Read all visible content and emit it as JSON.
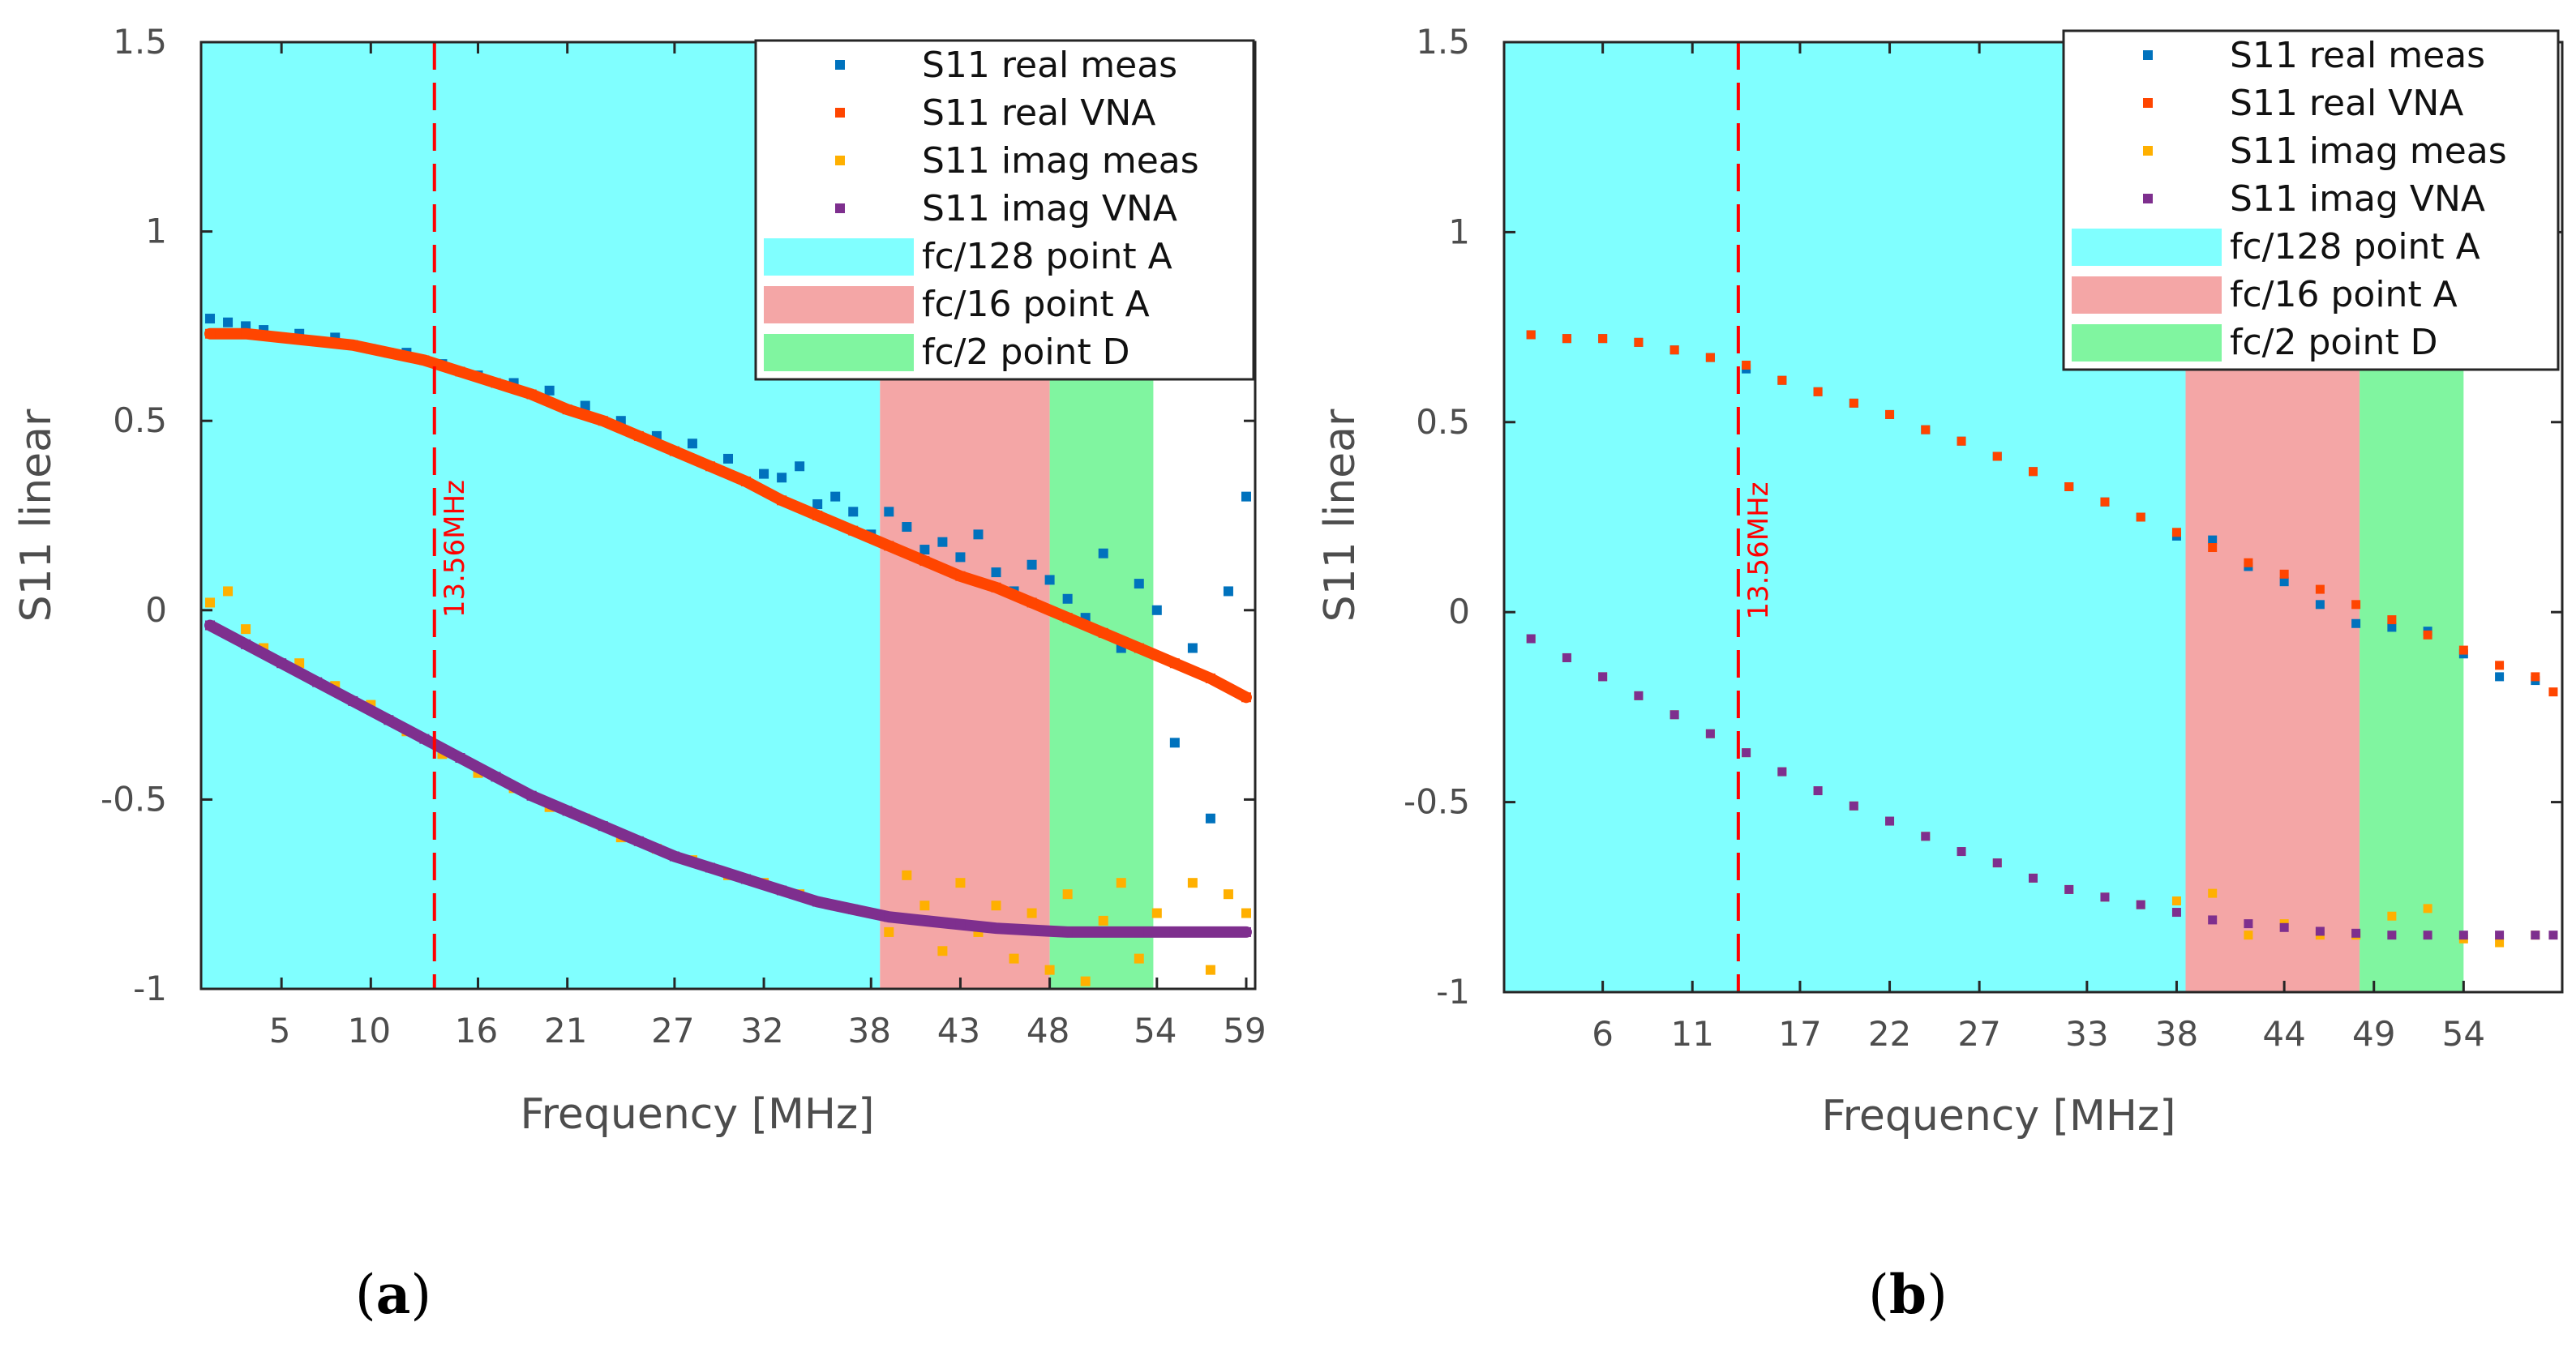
{
  "chart_data": [
    {
      "panel": "a",
      "type": "scatter",
      "caption": "a",
      "xlabel": "Frequency [MHz]",
      "ylabel": "S11 linear",
      "xlim": [
        0.5,
        59.5
      ],
      "ylim": [
        -1,
        1.5
      ],
      "xticks": [
        5,
        10,
        16,
        21,
        27,
        32,
        38,
        43,
        48,
        54,
        59
      ],
      "yticks": [
        -1,
        -0.5,
        0,
        0.5,
        1,
        1.5
      ],
      "ytick_labels": [
        "-1",
        "-0.5",
        "0",
        "0.5",
        "1",
        "1.5"
      ],
      "marker_line": {
        "x": 13.56,
        "label": "13.56MHz",
        "color": "#ff0000"
      },
      "bands": [
        {
          "label": "fc/128 point A",
          "x_start": 0.5,
          "x_end": 38.5,
          "color": "#80ffff"
        },
        {
          "label": "fc/16 point A",
          "x_start": 38.5,
          "x_end": 48.0,
          "color": "#f4a6a6"
        },
        {
          "label": "fc/2 point D",
          "x_start": 48.0,
          "x_end": 53.8,
          "color": "#80f5a0"
        }
      ],
      "series": [
        {
          "name": "S11 real meas",
          "color": "#0072bd",
          "x": [
            1,
            2,
            3,
            4,
            5,
            6,
            7,
            8,
            9,
            10,
            12,
            14,
            16,
            18,
            20,
            22,
            24,
            26,
            28,
            30,
            32,
            33,
            34,
            35,
            36,
            37,
            38,
            39,
            40,
            41,
            42,
            43,
            44,
            45,
            46,
            47,
            48,
            49,
            50,
            51,
            52,
            53,
            54,
            55,
            56,
            57,
            58,
            59
          ],
          "y": [
            0.77,
            0.76,
            0.75,
            0.74,
            0.72,
            0.73,
            0.71,
            0.72,
            0.7,
            0.69,
            0.68,
            0.65,
            0.62,
            0.6,
            0.58,
            0.54,
            0.5,
            0.46,
            0.44,
            0.4,
            0.36,
            0.35,
            0.38,
            0.28,
            0.3,
            0.26,
            0.2,
            0.26,
            0.22,
            0.16,
            0.18,
            0.14,
            0.2,
            0.1,
            0.05,
            0.12,
            0.08,
            0.03,
            -0.02,
            0.15,
            -0.1,
            0.07,
            0.0,
            -0.35,
            -0.1,
            -0.55,
            0.05,
            0.3
          ]
        },
        {
          "name": "S11 real VNA",
          "color": "#ff4500",
          "x": [
            1,
            3,
            5,
            7,
            9,
            11,
            13,
            15,
            17,
            19,
            21,
            23,
            25,
            27,
            29,
            31,
            33,
            35,
            37,
            39,
            41,
            43,
            45,
            47,
            49,
            51,
            53,
            55,
            57,
            59
          ],
          "y": [
            0.73,
            0.73,
            0.72,
            0.71,
            0.7,
            0.68,
            0.66,
            0.63,
            0.6,
            0.57,
            0.53,
            0.5,
            0.46,
            0.42,
            0.38,
            0.34,
            0.29,
            0.25,
            0.21,
            0.17,
            0.13,
            0.09,
            0.06,
            0.02,
            -0.02,
            -0.06,
            -0.1,
            -0.14,
            -0.18,
            -0.23
          ]
        },
        {
          "name": "S11 imag meas",
          "color": "#ffb000",
          "x": [
            1,
            2,
            3,
            4,
            6,
            8,
            10,
            12,
            14,
            16,
            18,
            20,
            22,
            24,
            26,
            28,
            30,
            32,
            34,
            36,
            38,
            39,
            40,
            41,
            42,
            43,
            44,
            45,
            46,
            47,
            48,
            49,
            50,
            51,
            52,
            53,
            54,
            55,
            56,
            57,
            58,
            59
          ],
          "y": [
            0.02,
            0.05,
            -0.05,
            -0.1,
            -0.14,
            -0.2,
            -0.25,
            -0.32,
            -0.38,
            -0.43,
            -0.47,
            -0.52,
            -0.55,
            -0.6,
            -0.63,
            -0.66,
            -0.7,
            -0.72,
            -0.75,
            -0.78,
            -0.8,
            -0.85,
            -0.7,
            -0.78,
            -0.9,
            -0.72,
            -0.85,
            -0.78,
            -0.92,
            -0.8,
            -0.95,
            -0.75,
            -0.98,
            -0.82,
            -0.72,
            -0.92,
            -0.8,
            -0.85,
            -0.72,
            -0.95,
            -0.75,
            -0.8
          ]
        },
        {
          "name": "S11 imag VNA",
          "color": "#7e2f8e",
          "x": [
            1,
            3,
            5,
            7,
            9,
            11,
            13,
            15,
            17,
            19,
            21,
            23,
            25,
            27,
            29,
            31,
            33,
            35,
            37,
            39,
            41,
            43,
            45,
            47,
            49,
            51,
            53,
            55,
            57,
            59
          ],
          "y": [
            -0.04,
            -0.09,
            -0.14,
            -0.19,
            -0.24,
            -0.29,
            -0.34,
            -0.39,
            -0.44,
            -0.49,
            -0.53,
            -0.57,
            -0.61,
            -0.65,
            -0.68,
            -0.71,
            -0.74,
            -0.77,
            -0.79,
            -0.81,
            -0.82,
            -0.83,
            -0.84,
            -0.845,
            -0.85,
            -0.85,
            -0.85,
            -0.85,
            -0.85,
            -0.85
          ]
        }
      ]
    },
    {
      "panel": "b",
      "type": "scatter",
      "caption": "b",
      "xlabel": "Frequency [MHz]",
      "ylabel": "S11 linear",
      "xlim": [
        0.5,
        59.5
      ],
      "ylim": [
        -1,
        1.5
      ],
      "xticks": [
        6,
        11,
        17,
        22,
        27,
        33,
        38,
        44,
        49,
        54
      ],
      "yticks": [
        -1,
        -0.5,
        0,
        0.5,
        1,
        1.5
      ],
      "ytick_labels": [
        "-1",
        "-0.5",
        "0",
        "0.5",
        "1",
        "1.5"
      ],
      "marker_line": {
        "x": 13.56,
        "label": "13.56MHz",
        "color": "#ff0000"
      },
      "bands": [
        {
          "label": "fc/128 point A",
          "x_start": 0.5,
          "x_end": 38.5,
          "color": "#80ffff"
        },
        {
          "label": "fc/16 point A",
          "x_start": 38.5,
          "x_end": 48.2,
          "color": "#f4a6a6"
        },
        {
          "label": "fc/2 point D",
          "x_start": 48.2,
          "x_end": 54.0,
          "color": "#80f5a0"
        }
      ],
      "series": [
        {
          "name": "S11 real meas",
          "color": "#0072bd",
          "x": [
            2,
            4,
            6,
            8,
            10,
            12,
            14,
            16,
            18,
            20,
            22,
            24,
            26,
            28,
            30,
            32,
            34,
            36,
            38,
            40,
            42,
            44,
            46,
            48,
            50,
            52,
            54,
            56,
            58
          ],
          "y": [
            0.73,
            0.72,
            0.72,
            0.71,
            0.69,
            0.67,
            0.64,
            0.61,
            0.58,
            0.55,
            0.52,
            0.48,
            0.45,
            0.41,
            0.37,
            0.33,
            0.29,
            0.25,
            0.2,
            0.19,
            0.12,
            0.08,
            0.02,
            -0.03,
            -0.04,
            -0.05,
            -0.11,
            -0.17,
            -0.18
          ]
        },
        {
          "name": "S11 real VNA",
          "color": "#ff4500",
          "x": [
            2,
            4,
            6,
            8,
            10,
            12,
            14,
            16,
            18,
            20,
            22,
            24,
            26,
            28,
            30,
            32,
            34,
            36,
            38,
            40,
            42,
            44,
            46,
            48,
            50,
            52,
            54,
            56,
            58,
            59
          ],
          "y": [
            0.73,
            0.72,
            0.72,
            0.71,
            0.69,
            0.67,
            0.65,
            0.61,
            0.58,
            0.55,
            0.52,
            0.48,
            0.45,
            0.41,
            0.37,
            0.33,
            0.29,
            0.25,
            0.21,
            0.17,
            0.13,
            0.1,
            0.06,
            0.02,
            -0.02,
            -0.06,
            -0.1,
            -0.14,
            -0.17,
            -0.21
          ]
        },
        {
          "name": "S11 imag meas",
          "color": "#ffb000",
          "x": [
            2,
            4,
            6,
            8,
            10,
            12,
            14,
            16,
            18,
            20,
            22,
            24,
            26,
            28,
            30,
            32,
            34,
            36,
            38,
            40,
            42,
            44,
            46,
            48,
            50,
            52,
            54,
            56,
            58
          ],
          "y": [
            -0.07,
            -0.12,
            -0.17,
            -0.22,
            -0.27,
            -0.32,
            -0.37,
            -0.42,
            -0.47,
            -0.51,
            -0.55,
            -0.59,
            -0.63,
            -0.66,
            -0.7,
            -0.73,
            -0.75,
            -0.77,
            -0.76,
            -0.74,
            -0.85,
            -0.82,
            -0.85,
            -0.85,
            -0.8,
            -0.78,
            -0.86,
            -0.87,
            -0.85
          ]
        },
        {
          "name": "S11 imag VNA",
          "color": "#7e2f8e",
          "x": [
            2,
            4,
            6,
            8,
            10,
            12,
            14,
            16,
            18,
            20,
            22,
            24,
            26,
            28,
            30,
            32,
            34,
            36,
            38,
            40,
            42,
            44,
            46,
            48,
            50,
            52,
            54,
            56,
            58,
            59
          ],
          "y": [
            -0.07,
            -0.12,
            -0.17,
            -0.22,
            -0.27,
            -0.32,
            -0.37,
            -0.42,
            -0.47,
            -0.51,
            -0.55,
            -0.59,
            -0.63,
            -0.66,
            -0.7,
            -0.73,
            -0.75,
            -0.77,
            -0.79,
            -0.81,
            -0.82,
            -0.83,
            -0.84,
            -0.845,
            -0.85,
            -0.85,
            -0.85,
            -0.85,
            -0.85,
            -0.85
          ]
        }
      ]
    }
  ]
}
